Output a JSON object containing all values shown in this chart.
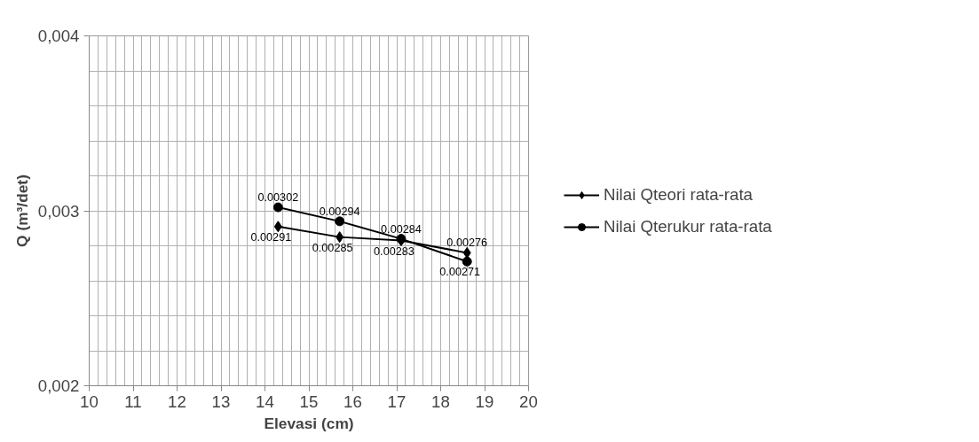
{
  "chart_data": {
    "type": "line",
    "xlabel": "Elevasi (cm)",
    "ylabel": "Q (m³/det)",
    "x": [
      14.3,
      15.7,
      17.1,
      18.6
    ],
    "series": [
      {
        "name": "Nilai Qteori rata-rata",
        "color": "#000000",
        "marker": "diamond",
        "values": [
          0.00291,
          0.00285,
          0.00283,
          0.00276
        ]
      },
      {
        "name": "Nilai Qterukur rata-rata",
        "color": "#000000",
        "marker": "circle",
        "values": [
          0.00302,
          0.00294,
          0.00284,
          0.00271
        ]
      }
    ],
    "xlim": [
      10,
      20
    ],
    "xticks": [
      10,
      11,
      12,
      13,
      14,
      15,
      16,
      17,
      18,
      19,
      20
    ],
    "ylim": [
      0.002,
      0.004
    ],
    "yticks": [
      {
        "value": 0.002,
        "label": "0,002"
      },
      {
        "value": 0.003,
        "label": "0,003"
      },
      {
        "value": 0.004,
        "label": "0,004"
      }
    ],
    "grid": true,
    "legend": "right",
    "data_labels": true,
    "line_style": "solid"
  }
}
